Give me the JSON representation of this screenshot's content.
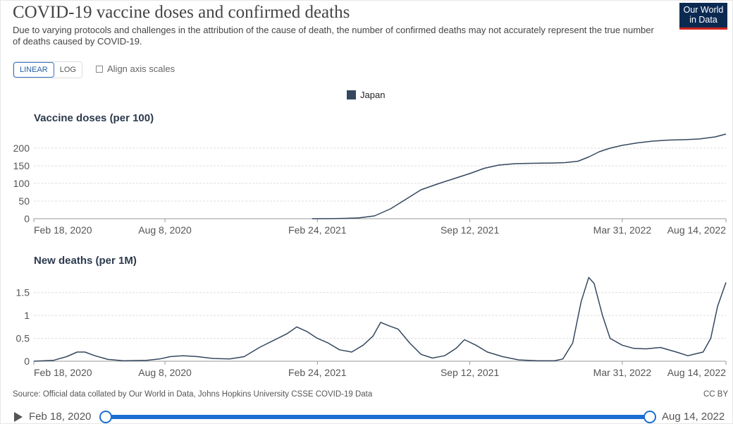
{
  "header": {
    "title": "COVID-19 vaccine doses and confirmed deaths",
    "subtitle": "Due to varying protocols and challenges in the attribution of the cause of death, the number of confirmed deaths may not accurately represent the true number of deaths caused by COVID-19."
  },
  "logo": {
    "line1": "Our World",
    "line2": "in Data"
  },
  "controls": {
    "linear_label": "LINEAR",
    "log_label": "LOG",
    "align_label": "Align axis scales",
    "selected_scale": "LINEAR",
    "align_checked": false
  },
  "legend": {
    "label": "Japan",
    "color": "#35475f"
  },
  "chart_data": [
    {
      "type": "line",
      "title": "Vaccine doses (per 100)",
      "series": [
        {
          "name": "Japan",
          "color": "#35475f",
          "x": [
            "2021-02-17",
            "2021-03-15",
            "2021-04-01",
            "2021-04-20",
            "2021-05-10",
            "2021-05-31",
            "2021-06-20",
            "2021-07-10",
            "2021-07-31",
            "2021-08-20",
            "2021-09-12",
            "2021-10-01",
            "2021-10-20",
            "2021-11-10",
            "2021-12-01",
            "2021-12-15",
            "2022-01-01",
            "2022-01-15",
            "2022-02-01",
            "2022-02-15",
            "2022-03-01",
            "2022-03-15",
            "2022-03-31",
            "2022-04-20",
            "2022-05-10",
            "2022-06-01",
            "2022-06-20",
            "2022-07-10",
            "2022-07-31",
            "2022-08-14"
          ],
          "y": [
            0,
            0.3,
            1,
            2.5,
            8,
            28,
            55,
            82,
            98,
            112,
            128,
            143,
            152,
            156,
            157,
            157.5,
            158,
            159,
            163,
            175,
            190,
            200,
            208,
            215,
            220,
            223,
            224,
            226,
            232,
            240
          ]
        }
      ],
      "yticks": [
        0,
        50,
        100,
        150,
        200
      ],
      "ylim": [
        0,
        240
      ],
      "xticks": [
        "Feb 18, 2020",
        "Aug 8, 2020",
        "Feb 24, 2021",
        "Sep 12, 2021",
        "Mar 31, 2022",
        "Aug 14, 2022"
      ],
      "xlim": [
        "2020-02-18",
        "2022-08-14"
      ],
      "grid": true
    },
    {
      "type": "line",
      "title": "New deaths (per 1M)",
      "series": [
        {
          "name": "Japan",
          "color": "#35475f",
          "x": [
            "2020-02-18",
            "2020-03-15",
            "2020-04-01",
            "2020-04-15",
            "2020-04-25",
            "2020-05-08",
            "2020-05-25",
            "2020-06-15",
            "2020-07-15",
            "2020-08-01",
            "2020-08-15",
            "2020-09-01",
            "2020-09-20",
            "2020-10-10",
            "2020-11-01",
            "2020-11-20",
            "2020-12-10",
            "2020-12-28",
            "2021-01-15",
            "2021-01-28",
            "2021-02-10",
            "2021-02-24",
            "2021-03-10",
            "2021-03-25",
            "2021-04-10",
            "2021-04-25",
            "2021-05-08",
            "2021-05-18",
            "2021-05-28",
            "2021-06-10",
            "2021-06-25",
            "2021-07-10",
            "2021-07-25",
            "2021-08-10",
            "2021-08-25",
            "2021-09-05",
            "2021-09-20",
            "2021-10-05",
            "2021-10-25",
            "2021-11-15",
            "2021-12-10",
            "2022-01-01",
            "2022-01-12",
            "2022-01-25",
            "2022-02-05",
            "2022-02-15",
            "2022-02-22",
            "2022-03-05",
            "2022-03-15",
            "2022-03-31",
            "2022-04-15",
            "2022-05-01",
            "2022-05-20",
            "2022-06-10",
            "2022-06-25",
            "2022-07-05",
            "2022-07-15",
            "2022-07-25",
            "2022-08-03",
            "2022-08-14"
          ],
          "y": [
            0,
            0.02,
            0.1,
            0.2,
            0.2,
            0.12,
            0.04,
            0.01,
            0.02,
            0.05,
            0.1,
            0.12,
            0.1,
            0.06,
            0.05,
            0.1,
            0.3,
            0.45,
            0.6,
            0.75,
            0.65,
            0.5,
            0.4,
            0.25,
            0.2,
            0.35,
            0.55,
            0.85,
            0.78,
            0.7,
            0.4,
            0.15,
            0.07,
            0.12,
            0.28,
            0.47,
            0.35,
            0.2,
            0.1,
            0.03,
            0.01,
            0.01,
            0.05,
            0.4,
            1.3,
            1.83,
            1.7,
            1.0,
            0.5,
            0.35,
            0.28,
            0.27,
            0.3,
            0.2,
            0.12,
            0.16,
            0.2,
            0.5,
            1.2,
            1.72
          ]
        }
      ],
      "yticks": [
        0,
        0.5,
        1,
        1.5
      ],
      "ylim": [
        0,
        1.85
      ],
      "xticks": [
        "Feb 18, 2020",
        "Aug 8, 2020",
        "Feb 24, 2021",
        "Sep 12, 2021",
        "Mar 31, 2022",
        "Aug 14, 2022"
      ],
      "xlim": [
        "2020-02-18",
        "2022-08-14"
      ],
      "grid": true
    }
  ],
  "footer": {
    "source": "Source: Official data collated by Our World in Data, Johns Hopkins University CSSE COVID-19 Data",
    "license": "CC BY"
  },
  "timeline": {
    "start_label": "Feb 18, 2020",
    "end_label": "Aug 14, 2022"
  }
}
